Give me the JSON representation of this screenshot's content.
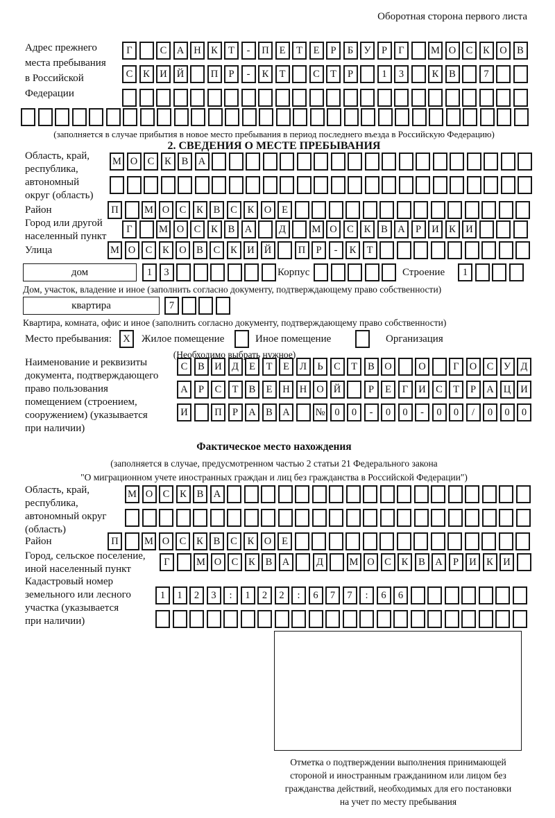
{
  "page": {
    "back_title": "Оборотная сторона первого листа"
  },
  "prev_address": {
    "label_lines": [
      "Адрес прежнего",
      "места пребывания",
      "в Российской",
      "Федерации"
    ],
    "row1": "Г САНКТ-ПЕТЕРБУРГ МОСКОВ",
    "row2": "СКИЙ ПР-КТ СТР 13 КВ 7  ",
    "row3": "                        ",
    "row4": "                              ",
    "caption": "(заполняется в случае прибытия в новое место пребывания в период последнего въезда в Российскую Федерацию)"
  },
  "stay_info": {
    "heading": "2. СВЕДЕНИЯ О МЕСТЕ ПРЕБЫВАНИЯ",
    "region_label_lines": [
      "Область, край,",
      "республика,",
      "автономный",
      "округ (область)"
    ],
    "region_row1": "МОСКВА                   ",
    "region_row2": "                         ",
    "district_label": "Район",
    "district_row": "П МОСКВСКОЕ              ",
    "city_label_lines": [
      "Город или другой",
      "населенный пункт"
    ],
    "city_row": "Г МОСКВА Д МОСКВАРИКИ   ",
    "street_label": "Улица",
    "street_row": "МОСКОВСКИЙ ПР-КТ         ",
    "house_box_label": "дом",
    "house_cells": "13      ",
    "korpus_label": "Корпус",
    "korpus_cells": "     ",
    "stroenie_label": "Строение",
    "stroenie_cells": "1   ",
    "house_caption": "Дом, участок, владение и иное (заполнить согласно документу, подтверждающему право собственности)",
    "apartment_box_label": "квартира",
    "apartment_cells": "7   ",
    "apartment_caption": "Квартира, комната, офис и иное (заполнить согласно документу, подтверждающему право собственности)",
    "place_type_label": "Место пребывания:",
    "residential_cell": "X",
    "residential_label": "Жилое помещение",
    "other_cell": " ",
    "other_label": "Иное помещение",
    "org_cell": " ",
    "org_label": "Организация",
    "choose_caption": "(Необходимо выбрать нужное)",
    "doc_label_lines": [
      "Наименование и реквизиты",
      "документа, подтверждающего",
      "право пользования",
      "помещением (строением,",
      "сооружением) (указывается",
      "при наличии)"
    ],
    "doc_row1": "СВИДЕТЕЛЬСТВО О ГОСУД",
    "doc_row2": "АРСТВЕННОЙ РЕГИСТРАЦИ",
    "doc_row3": "И ПРАВА №00-00-00/000"
  },
  "actual_location": {
    "heading": "Фактическое место нахождения",
    "caption_line1": "(заполняется в случае, предусмотренном частью 2 статьи 21 Федерального закона",
    "caption_line2": "\"О миграционном учете иностранных граждан и лиц без гражданства в Российской Федерации\")",
    "region_label_lines": [
      "Область, край,",
      "республика,",
      "автономный округ",
      "(область)"
    ],
    "region_row1": "МОСКВА                  ",
    "region_row2": "                        ",
    "district_label": "Район",
    "district_row": "П МОСКВСКОЕ              ",
    "city_label_lines": [
      "Город, сельское поселение,",
      "иной населенный пункт"
    ],
    "city_row": "Г МОСКВА Д МОСКВАРИКИ ",
    "cadastral_label_lines": [
      "Кадастровый номер",
      "земельного или лесного",
      "участка (указывается",
      "при наличии)"
    ],
    "cadastral_row1": "1123:122:677:66       ",
    "cadastral_row2": "                      "
  },
  "stamp": {
    "caption_lines": [
      "Отметка о подтверждении выполнения принимающей",
      "стороной и иностранным гражданином или лицом без",
      "гражданства действий, необходимых для его постановки",
      "на учет по месту пребывания"
    ]
  }
}
